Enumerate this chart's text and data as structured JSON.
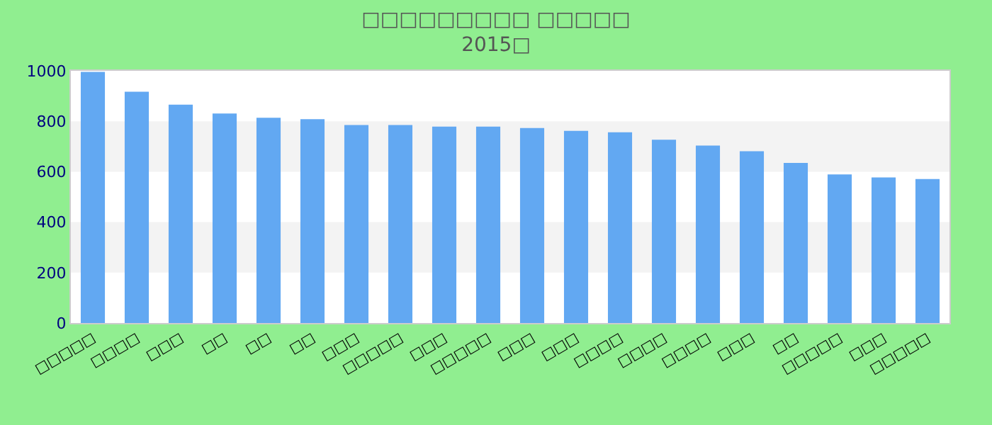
{
  "chart_data": {
    "type": "bar",
    "title": "□□□□□□□□□ □□□□□",
    "subtitle": "2015□",
    "categories": [
      "□□□□□",
      "□□□□",
      "□□□",
      "□□",
      "□□",
      "□□",
      "□□□",
      "□□□□□",
      "□□□",
      "□□□□□",
      "□□□",
      "□□□",
      "□□□□",
      "□□□□",
      "□□□□",
      "□□□",
      "□□",
      "□□□□□",
      "□□□",
      "□□□□□"
    ],
    "values": [
      996,
      917,
      866,
      831,
      814,
      808,
      785,
      785,
      779,
      779,
      773,
      762,
      756,
      727,
      704,
      681,
      635,
      589,
      577,
      571
    ],
    "color": "#62a8f2",
    "ylim": [
      0,
      1000
    ],
    "yticks": [
      0,
      200,
      400,
      600,
      800,
      1000
    ],
    "bands": [
      {
        "axis": "y",
        "from": 200,
        "to": 400,
        "color": "#f3f3f3"
      },
      {
        "axis": "y",
        "from": 600,
        "to": 800,
        "color": "#f3f3f3"
      }
    ]
  }
}
